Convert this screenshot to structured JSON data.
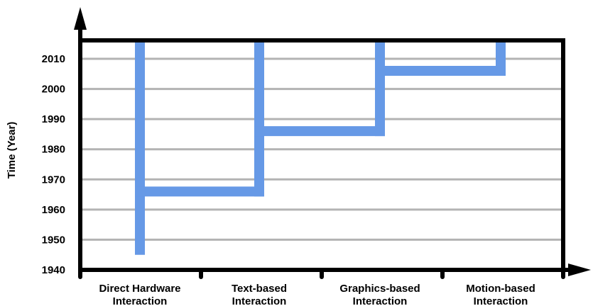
{
  "chart_data": {
    "type": "line",
    "title": "",
    "xlabel": "",
    "ylabel": "Time (Year)",
    "ylim": [
      1940,
      2016
    ],
    "yticks": [
      1940,
      1950,
      1960,
      1970,
      1980,
      1990,
      2000,
      2010
    ],
    "grid": true,
    "categories": [
      [
        "Direct Hardware",
        "Interaction"
      ],
      [
        "Text-based",
        "Interaction"
      ],
      [
        "Graphics-based",
        "Interaction"
      ],
      [
        "Motion-based",
        "Interaction"
      ]
    ],
    "series": [
      {
        "points": [
          {
            "x": "Direct Hardware Interaction",
            "start": 1945
          },
          {
            "x": "Text-based Interaction",
            "start": 1966
          },
          {
            "x": "Graphics-based Interaction",
            "start": 1986
          },
          {
            "x": "Motion-based Interaction",
            "start": 2006
          }
        ]
      }
    ],
    "colors": {
      "line": "#6699e6",
      "grid": "#b3b3b3",
      "axis": "#000000"
    }
  }
}
